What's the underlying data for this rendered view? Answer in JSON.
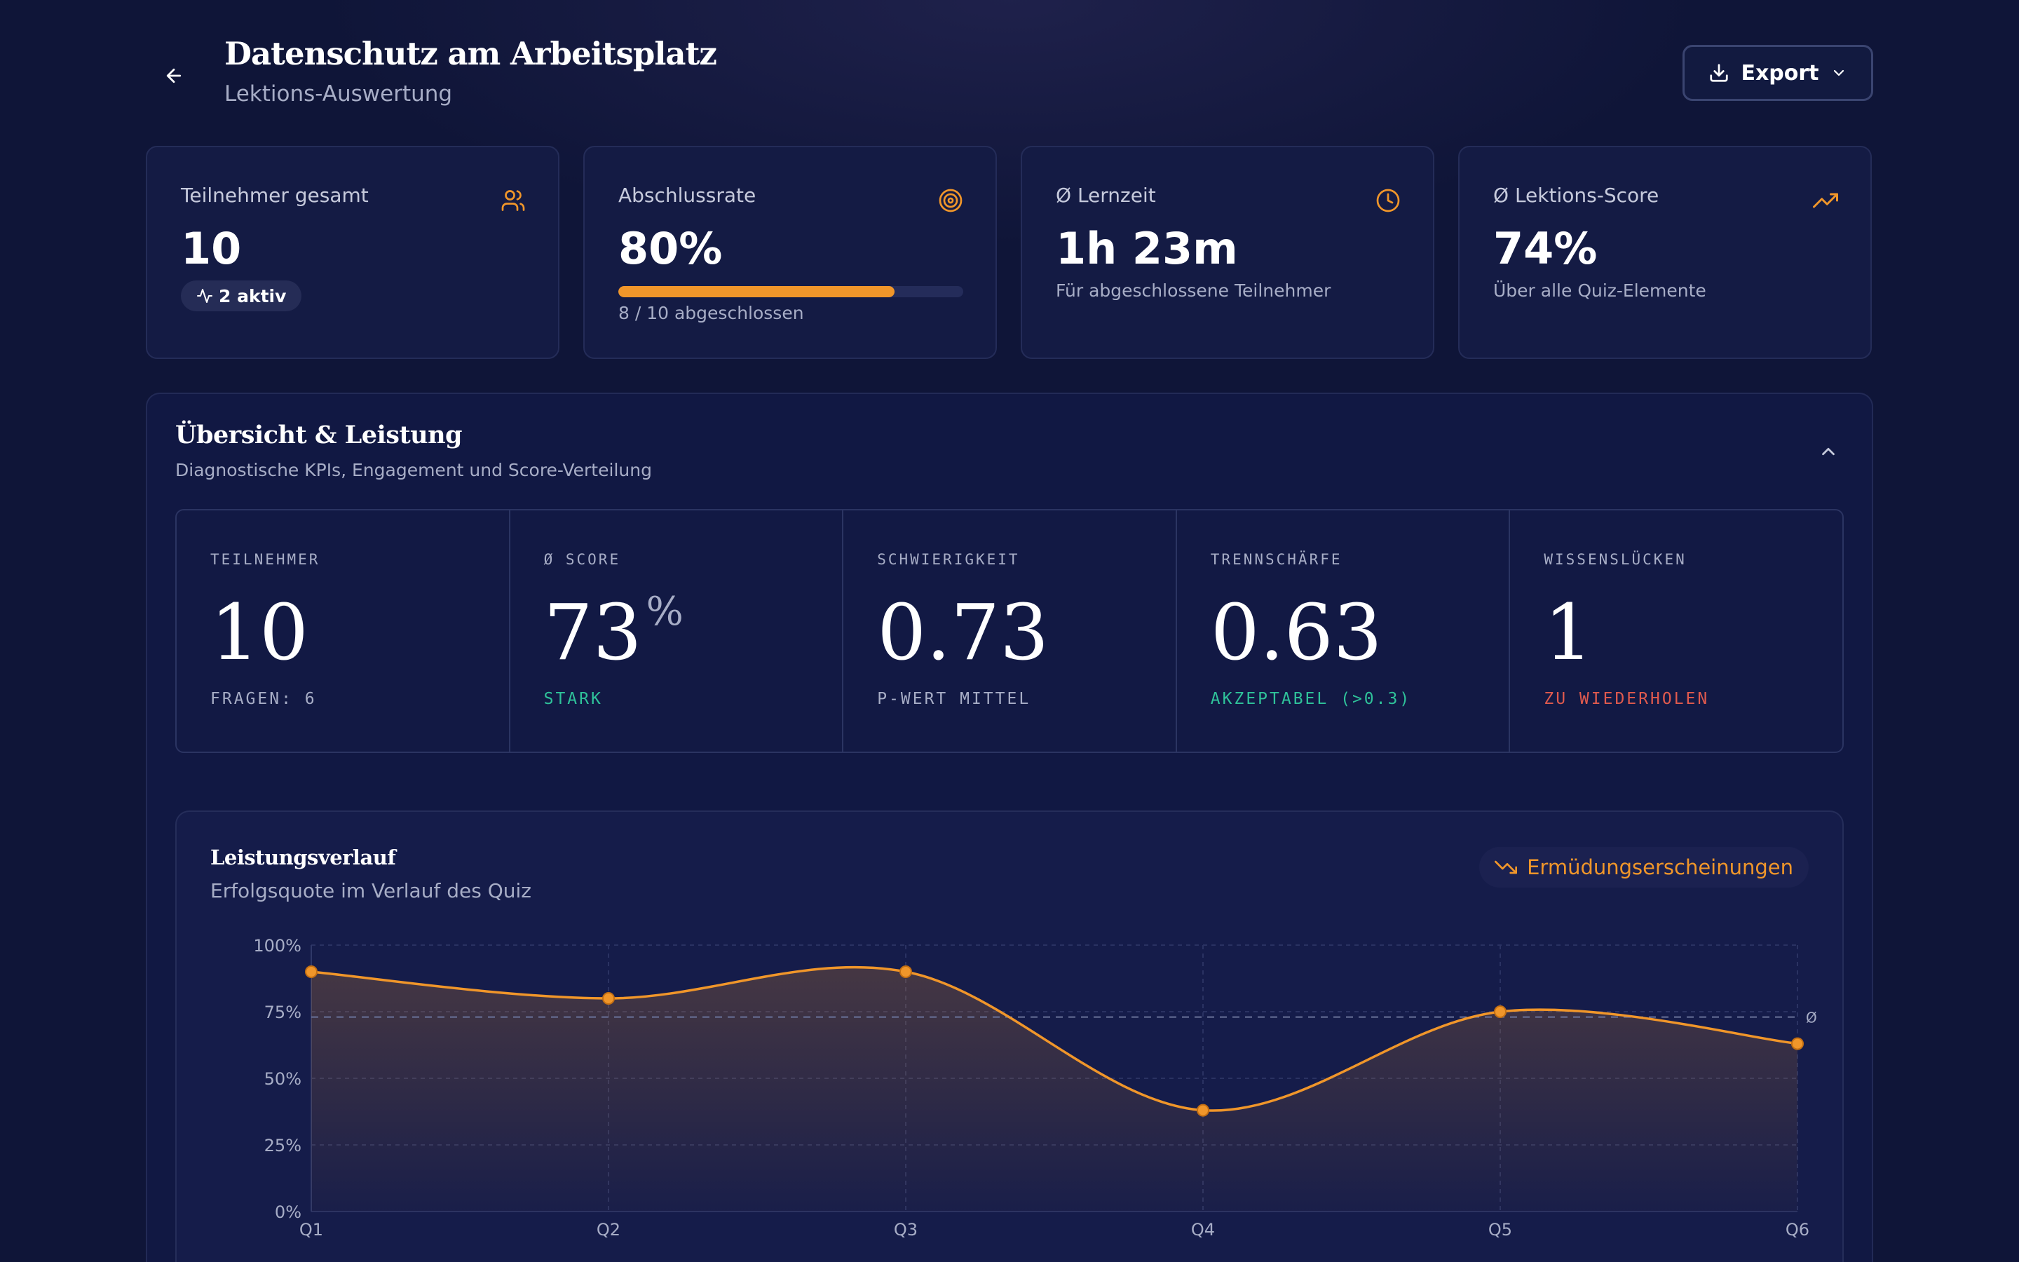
{
  "header": {
    "title": "Datenschutz am Arbeitsplatz",
    "subtitle": "Lektions-Auswertung",
    "export_label": "Export"
  },
  "kpis": [
    {
      "label": "Teilnehmer gesamt",
      "value": "10",
      "badge": "2 aktiv",
      "icon": "users-icon"
    },
    {
      "label": "Abschlussrate",
      "value": "80%",
      "progress": 0.8,
      "note": "8 / 10 abgeschlossen",
      "icon": "target-icon"
    },
    {
      "label": "Ø Lernzeit",
      "value": "1h 23m",
      "note": "Für abgeschlossene Teilnehmer",
      "icon": "clock-icon"
    },
    {
      "label": "Ø Lektions-Score",
      "value": "74%",
      "note": "Über alle Quiz-Elemente",
      "icon": "trending-up-icon"
    }
  ],
  "section": {
    "title": "Übersicht & Leistung",
    "subtitle": "Diagnostische KPIs, Engagement und Score-Verteilung"
  },
  "metrics": [
    {
      "label": "TEILNEHMER",
      "value": "10",
      "unit": "",
      "sub": "FRAGEN: 6",
      "sub_color": "muted"
    },
    {
      "label": "Ø SCORE",
      "value": "73",
      "unit": "%",
      "sub": "STARK",
      "sub_color": "green"
    },
    {
      "label": "SCHWIERIGKEIT",
      "value": "0.73",
      "unit": "",
      "sub": "P-WERT MITTEL",
      "sub_color": "muted"
    },
    {
      "label": "TRENNSCHÄRFE",
      "value": "0.63",
      "unit": "",
      "sub": "AKZEPTABEL (>0.3)",
      "sub_color": "green"
    },
    {
      "label": "WISSENSLÜCKEN",
      "value": "1",
      "unit": "",
      "sub": "ZU WIEDERHOLEN",
      "sub_color": "red"
    }
  ],
  "chart_card": {
    "title": "Leistungsverlauf",
    "subtitle": "Erfolgsquote im Verlauf des Quiz",
    "badge": "Ermüdungserscheinungen"
  },
  "chart_data": {
    "type": "area",
    "categories": [
      "Q1",
      "Q2",
      "Q3",
      "Q4",
      "Q5",
      "Q6"
    ],
    "values": [
      90,
      80,
      90,
      38,
      75,
      63
    ],
    "average": 73,
    "average_label": "Ø",
    "ylim": [
      0,
      100
    ],
    "yticks": [
      "0%",
      "25%",
      "50%",
      "75%",
      "100%"
    ],
    "grid": true,
    "color": "#f0962a"
  },
  "colors": {
    "accent": "#f0962a",
    "success": "#2fc29a",
    "danger": "#e05a4e",
    "background": "#0f1538"
  }
}
